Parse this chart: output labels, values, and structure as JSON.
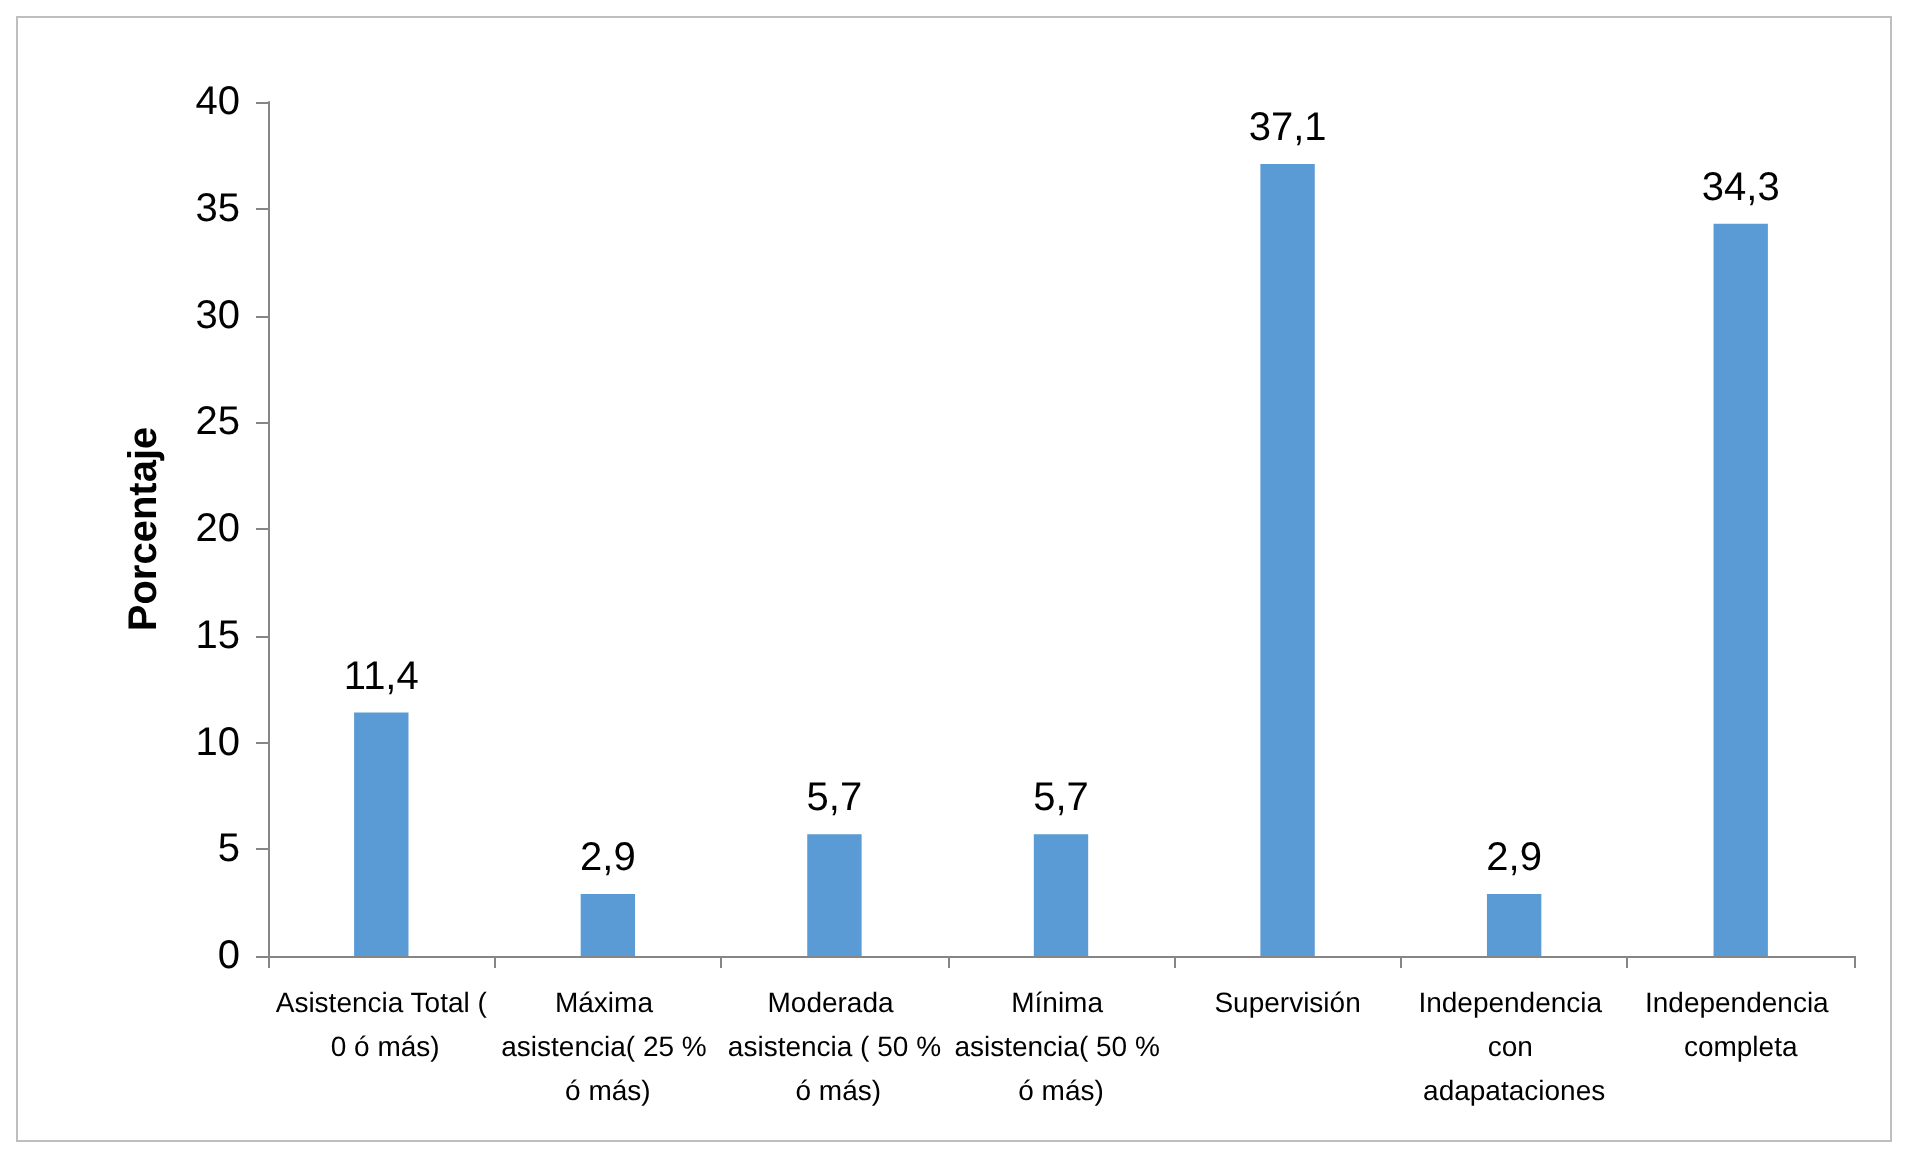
{
  "chart_data": {
    "type": "bar",
    "ylabel": "Porcentaje",
    "categories": [
      "Asistencia Total ( 0 ó más)",
      "Máxima asistencia( 25 % ó más)",
      "Moderada asistencia ( 50 % ó más)",
      "Mínima asistencia( 50 % ó más)",
      "Supervisión",
      "Independencia con adapataciones",
      "Independencia completa"
    ],
    "values": [
      11.4,
      2.9,
      5.7,
      5.7,
      37.1,
      2.9,
      34.3
    ],
    "value_labels": [
      "11,4",
      "2,9",
      "5,7",
      "5,7",
      "37,1",
      "2,9",
      "34,3"
    ],
    "color": "#5b9bd5",
    "ylim": [
      0,
      40
    ],
    "yticks": [
      0,
      5,
      10,
      15,
      20,
      25,
      30,
      35,
      40
    ],
    "grid": false
  }
}
